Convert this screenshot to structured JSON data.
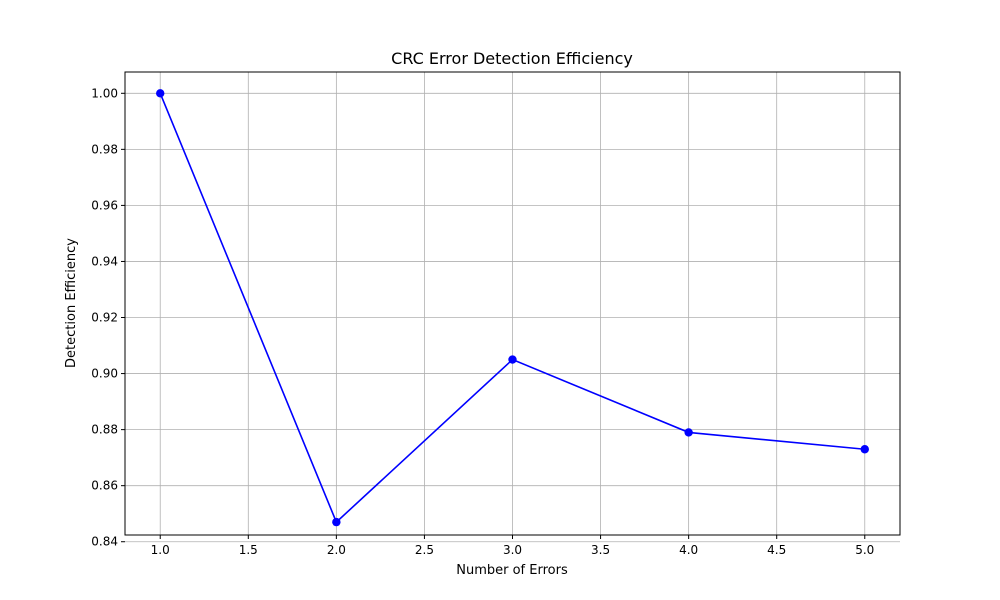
{
  "chart_data": {
    "type": "line",
    "title": "CRC Error Detection Efficiency",
    "xlabel": "Number of Errors",
    "ylabel": "Detection Efficiency",
    "xlim": [
      0.8,
      5.2
    ],
    "ylim": [
      0.8424,
      1.0076
    ],
    "xticks": [
      "1.0",
      "1.5",
      "2.0",
      "2.5",
      "3.0",
      "3.5",
      "4.0",
      "4.5",
      "5.0"
    ],
    "yticks": [
      "0.84",
      "0.86",
      "0.88",
      "0.90",
      "0.92",
      "0.94",
      "0.96",
      "0.98",
      "1.00"
    ],
    "grid": true,
    "series": [
      {
        "x": [
          1,
          2,
          3,
          4,
          5
        ],
        "y": [
          1.0,
          0.847,
          0.905,
          0.879,
          0.873
        ],
        "color": "#0000ff",
        "marker": "circle"
      }
    ]
  }
}
